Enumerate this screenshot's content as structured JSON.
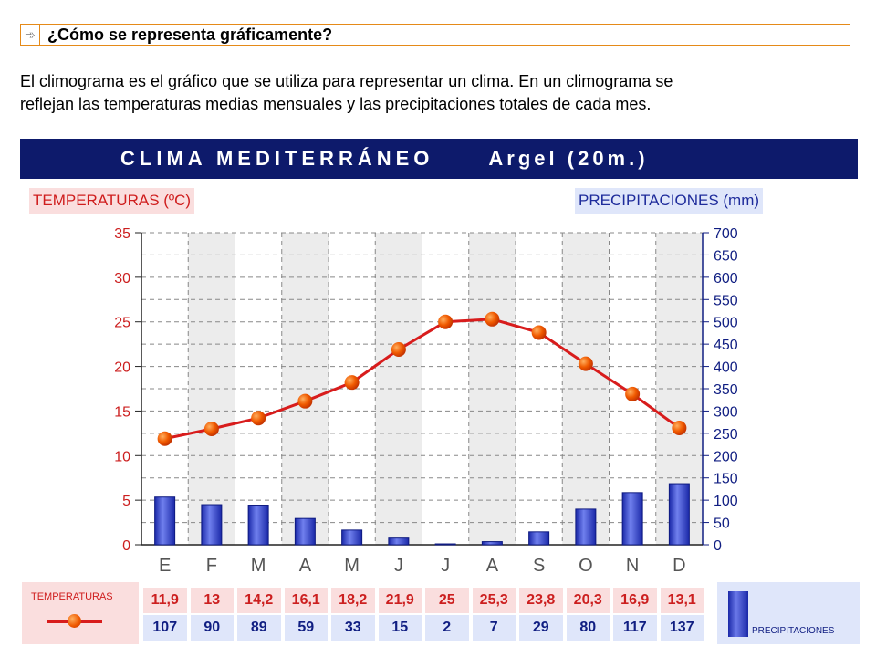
{
  "header": {
    "arrow_icon": "arrow-right-icon",
    "title": "¿Cómo se representa gráficamente?"
  },
  "intro": {
    "line1": "El climograma es el gráfico que se utiliza para representar un clima. En un climograma se",
    "line2": "reflejan las temperaturas medias mensuales y las precipitaciones totales de cada mes."
  },
  "banner": {
    "title": "CLIMA MEDITERRÁNEO",
    "place": "Argel (20m.)"
  },
  "colors": {
    "banner_bg": "#0d1a6b",
    "temperature": "#d81c1c",
    "precipitation": "#1a28a8",
    "header_border": "#e58a18"
  },
  "legend": {
    "temperatures": "TEMPERATURAS",
    "precipitations": "PRECIPITACIONES"
  },
  "chart_data": {
    "type": "bar",
    "title": "CLIMA MEDITERRÁNEO    Argel (20m.)",
    "categories": [
      "E",
      "F",
      "M",
      "A",
      "M",
      "J",
      "J",
      "A",
      "S",
      "O",
      "N",
      "D"
    ],
    "y_left_label": "TEMPERATURAS (ºC)",
    "y_right_label": "PRECIPITACIONES (mm)",
    "y_left_range": [
      0,
      35
    ],
    "y_left_ticks": [
      0,
      5,
      10,
      15,
      20,
      25,
      30,
      35
    ],
    "y_right_range": [
      0,
      700
    ],
    "y_right_ticks": [
      0,
      50,
      100,
      150,
      200,
      250,
      300,
      350,
      400,
      450,
      500,
      550,
      600,
      650,
      700
    ],
    "grid": true,
    "series": [
      {
        "name": "TEMPERATURAS",
        "type": "line",
        "axis": "left",
        "values": [
          11.9,
          13,
          14.2,
          16.1,
          18.2,
          21.9,
          25,
          25.3,
          23.8,
          20.3,
          16.9,
          13.1
        ],
        "labels": [
          "11,9",
          "13",
          "14,2",
          "16,1",
          "18,2",
          "21,9",
          "25",
          "25,3",
          "23,8",
          "20,3",
          "16,9",
          "13,1"
        ]
      },
      {
        "name": "PRECIPITACIONES",
        "type": "bar",
        "axis": "right",
        "values": [
          107,
          90,
          89,
          59,
          33,
          15,
          2,
          7,
          29,
          80,
          117,
          137
        ],
        "labels": [
          "107",
          "90",
          "89",
          "59",
          "33",
          "15",
          "2",
          "7",
          "29",
          "80",
          "117",
          "137"
        ]
      }
    ]
  }
}
